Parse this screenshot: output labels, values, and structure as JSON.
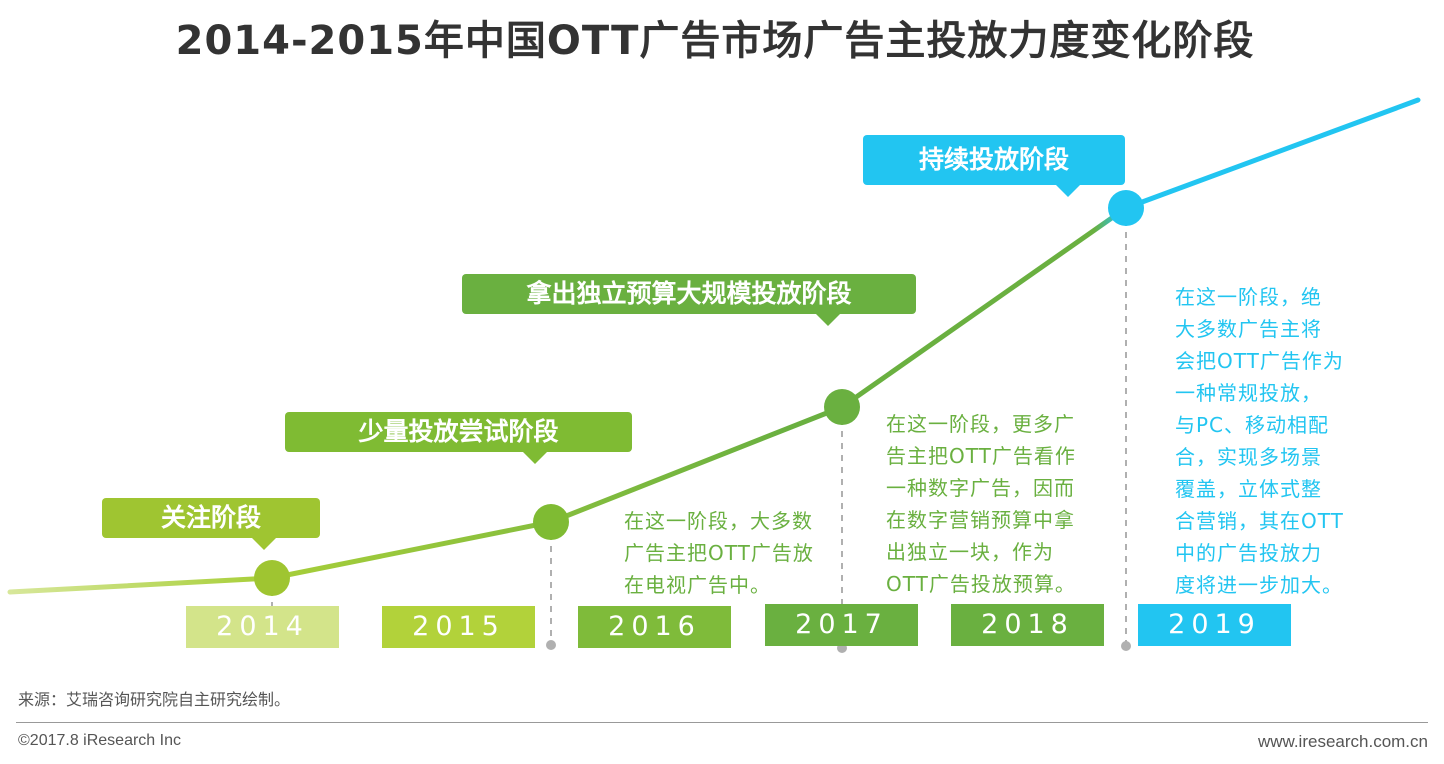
{
  "title": "2014-2015年中国OTT广告市场广告主投放力度变化阶段",
  "stages": [
    {
      "label": "关注阶段",
      "color": "#9fc531"
    },
    {
      "label": "少量投放尝试阶段",
      "color": "#7fbb33"
    },
    {
      "label": "拿出独立预算大规模投放阶段",
      "color": "#6ab040"
    },
    {
      "label": "持续投放阶段",
      "color": "#22c5f1"
    }
  ],
  "years": [
    {
      "label": "2014",
      "color": "#d3e48a"
    },
    {
      "label": "2015",
      "color": "#b2d23a"
    },
    {
      "label": "2016",
      "color": "#7fbb3a"
    },
    {
      "label": "2017",
      "color": "#6ab040"
    },
    {
      "label": "2018",
      "color": "#6ab040"
    },
    {
      "label": "2019",
      "color": "#22c5f1"
    }
  ],
  "descriptions": {
    "stage2016": [
      "在这一阶段，大多数",
      "广告主把OTT广告放",
      "在电视广告中。"
    ],
    "stage2017": [
      "在这一阶段，更多广",
      "告主把OTT广告看作",
      "一种数字广告，因而",
      "在数字营销预算中拿",
      "出独立一块，作为",
      "OTT广告投放预算。"
    ],
    "stage2019": [
      "在这一阶段，绝",
      "大多数广告主将",
      "会把OTT广告作为",
      "一种常规投放，",
      "与PC、移动相配",
      "合，实现多场景",
      "覆盖，立体式整",
      "合营销，其在OTT",
      "中的广告投放力",
      "度将进一步加大。"
    ]
  },
  "colors": {
    "green_text": "#6ab040",
    "blue_text": "#22c5f1",
    "dashed": "#b0b0b0"
  },
  "footer": {
    "source": "来源：艾瑞咨询研究院自主研究绘制。",
    "copyright": "©2017.8 iResearch Inc",
    "website": "www.iresearch.com.cn"
  }
}
